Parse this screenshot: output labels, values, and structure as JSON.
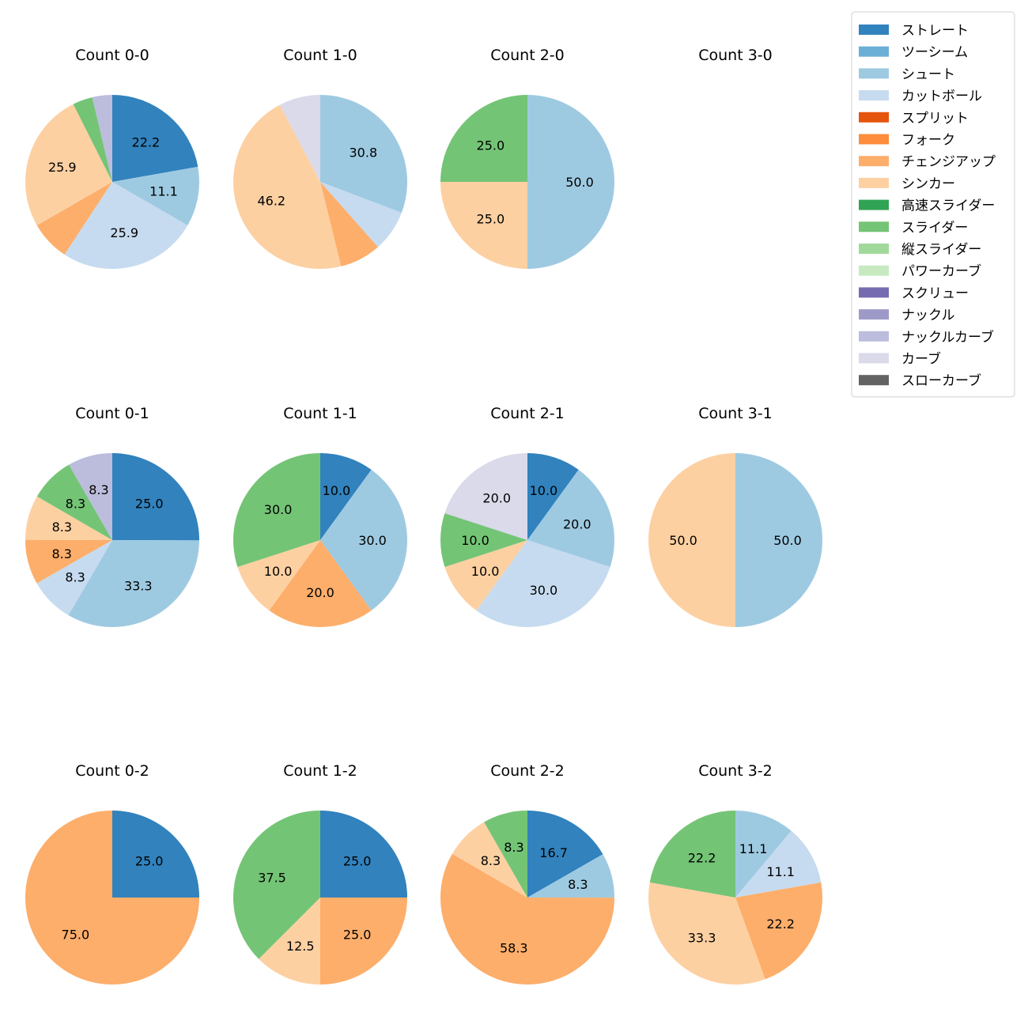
{
  "chart_data": {
    "type": "pie",
    "legend": {
      "placement": "top-right",
      "entries": [
        {
          "name": "ストレート",
          "color": "#3182bd"
        },
        {
          "name": "ツーシーム",
          "color": "#6baed6"
        },
        {
          "name": "シュート",
          "color": "#9ecae1"
        },
        {
          "name": "カットボール",
          "color": "#c6dbef"
        },
        {
          "name": "スプリット",
          "color": "#e6550d"
        },
        {
          "name": "フォーク",
          "color": "#fd8d3c"
        },
        {
          "name": "チェンジアップ",
          "color": "#fdae6b"
        },
        {
          "name": "シンカー",
          "color": "#fdd0a2"
        },
        {
          "name": "高速スライダー",
          "color": "#31a354"
        },
        {
          "name": "スライダー",
          "color": "#74c476"
        },
        {
          "name": "縦スライダー",
          "color": "#a1d99b"
        },
        {
          "name": "パワーカーブ",
          "color": "#c7e9c0"
        },
        {
          "name": "スクリュー",
          "color": "#756bb1"
        },
        {
          "name": "ナックル",
          "color": "#9e9ac8"
        },
        {
          "name": "ナックルカーブ",
          "color": "#bcbddc"
        },
        {
          "name": "カーブ",
          "color": "#dadaeb"
        },
        {
          "name": "スローカーブ",
          "color": "#636363"
        }
      ]
    },
    "pies": [
      {
        "title": "Count 0-0",
        "slices": [
          {
            "pitch": "ストレート",
            "value": 22.2,
            "label": "22.2"
          },
          {
            "pitch": "シュート",
            "value": 11.1,
            "label": "11.1"
          },
          {
            "pitch": "カットボール",
            "value": 25.9,
            "label": "25.9"
          },
          {
            "pitch": "チェンジアップ",
            "value": 7.4,
            "label": ""
          },
          {
            "pitch": "シンカー",
            "value": 25.9,
            "label": "25.9"
          },
          {
            "pitch": "スライダー",
            "value": 3.7,
            "label": ""
          },
          {
            "pitch": "ナックルカーブ",
            "value": 3.7,
            "label": ""
          }
        ]
      },
      {
        "title": "Count 1-0",
        "slices": [
          {
            "pitch": "シュート",
            "value": 30.8,
            "label": "30.8"
          },
          {
            "pitch": "カットボール",
            "value": 7.7,
            "label": ""
          },
          {
            "pitch": "チェンジアップ",
            "value": 7.7,
            "label": ""
          },
          {
            "pitch": "シンカー",
            "value": 46.2,
            "label": "46.2"
          },
          {
            "pitch": "カーブ",
            "value": 7.7,
            "label": ""
          }
        ]
      },
      {
        "title": "Count 2-0",
        "slices": [
          {
            "pitch": "シュート",
            "value": 50.0,
            "label": "50.0"
          },
          {
            "pitch": "シンカー",
            "value": 25.0,
            "label": "25.0"
          },
          {
            "pitch": "スライダー",
            "value": 25.0,
            "label": "25.0"
          }
        ]
      },
      {
        "title": "Count 3-0",
        "slices": []
      },
      {
        "title": "Count 0-1",
        "slices": [
          {
            "pitch": "ストレート",
            "value": 25.0,
            "label": "25.0"
          },
          {
            "pitch": "シュート",
            "value": 33.3,
            "label": "33.3"
          },
          {
            "pitch": "カットボール",
            "value": 8.3,
            "label": "8.3"
          },
          {
            "pitch": "チェンジアップ",
            "value": 8.3,
            "label": "8.3"
          },
          {
            "pitch": "シンカー",
            "value": 8.3,
            "label": "8.3"
          },
          {
            "pitch": "スライダー",
            "value": 8.3,
            "label": "8.3"
          },
          {
            "pitch": "ナックルカーブ",
            "value": 8.3,
            "label": "8.3"
          }
        ]
      },
      {
        "title": "Count 1-1",
        "slices": [
          {
            "pitch": "ストレート",
            "value": 10.0,
            "label": "10.0"
          },
          {
            "pitch": "シュート",
            "value": 30.0,
            "label": "30.0"
          },
          {
            "pitch": "チェンジアップ",
            "value": 20.0,
            "label": "20.0"
          },
          {
            "pitch": "シンカー",
            "value": 10.0,
            "label": "10.0"
          },
          {
            "pitch": "スライダー",
            "value": 30.0,
            "label": "30.0"
          }
        ]
      },
      {
        "title": "Count 2-1",
        "slices": [
          {
            "pitch": "ストレート",
            "value": 10.0,
            "label": "10.0"
          },
          {
            "pitch": "シュート",
            "value": 20.0,
            "label": "20.0"
          },
          {
            "pitch": "カットボール",
            "value": 30.0,
            "label": "30.0"
          },
          {
            "pitch": "シンカー",
            "value": 10.0,
            "label": "10.0"
          },
          {
            "pitch": "スライダー",
            "value": 10.0,
            "label": "10.0"
          },
          {
            "pitch": "カーブ",
            "value": 20.0,
            "label": "20.0"
          }
        ]
      },
      {
        "title": "Count 3-1",
        "slices": [
          {
            "pitch": "シュート",
            "value": 50.0,
            "label": "50.0"
          },
          {
            "pitch": "シンカー",
            "value": 50.0,
            "label": "50.0"
          }
        ]
      },
      {
        "title": "Count 0-2",
        "slices": [
          {
            "pitch": "ストレート",
            "value": 25.0,
            "label": "25.0"
          },
          {
            "pitch": "チェンジアップ",
            "value": 75.0,
            "label": "75.0"
          }
        ]
      },
      {
        "title": "Count 1-2",
        "slices": [
          {
            "pitch": "ストレート",
            "value": 25.0,
            "label": "25.0"
          },
          {
            "pitch": "チェンジアップ",
            "value": 25.0,
            "label": "25.0"
          },
          {
            "pitch": "シンカー",
            "value": 12.5,
            "label": "12.5"
          },
          {
            "pitch": "スライダー",
            "value": 37.5,
            "label": "37.5"
          }
        ]
      },
      {
        "title": "Count 2-2",
        "slices": [
          {
            "pitch": "ストレート",
            "value": 16.7,
            "label": "16.7"
          },
          {
            "pitch": "シュート",
            "value": 8.3,
            "label": "8.3"
          },
          {
            "pitch": "チェンジアップ",
            "value": 58.3,
            "label": "58.3"
          },
          {
            "pitch": "シンカー",
            "value": 8.3,
            "label": "8.3"
          },
          {
            "pitch": "スライダー",
            "value": 8.3,
            "label": "8.3"
          }
        ]
      },
      {
        "title": "Count 3-2",
        "slices": [
          {
            "pitch": "シュート",
            "value": 11.1,
            "label": "11.1"
          },
          {
            "pitch": "カットボール",
            "value": 11.1,
            "label": "11.1"
          },
          {
            "pitch": "チェンジアップ",
            "value": 22.2,
            "label": "22.2"
          },
          {
            "pitch": "シンカー",
            "value": 33.3,
            "label": "33.3"
          },
          {
            "pitch": "スライダー",
            "value": 22.2,
            "label": "22.2"
          }
        ]
      }
    ]
  }
}
